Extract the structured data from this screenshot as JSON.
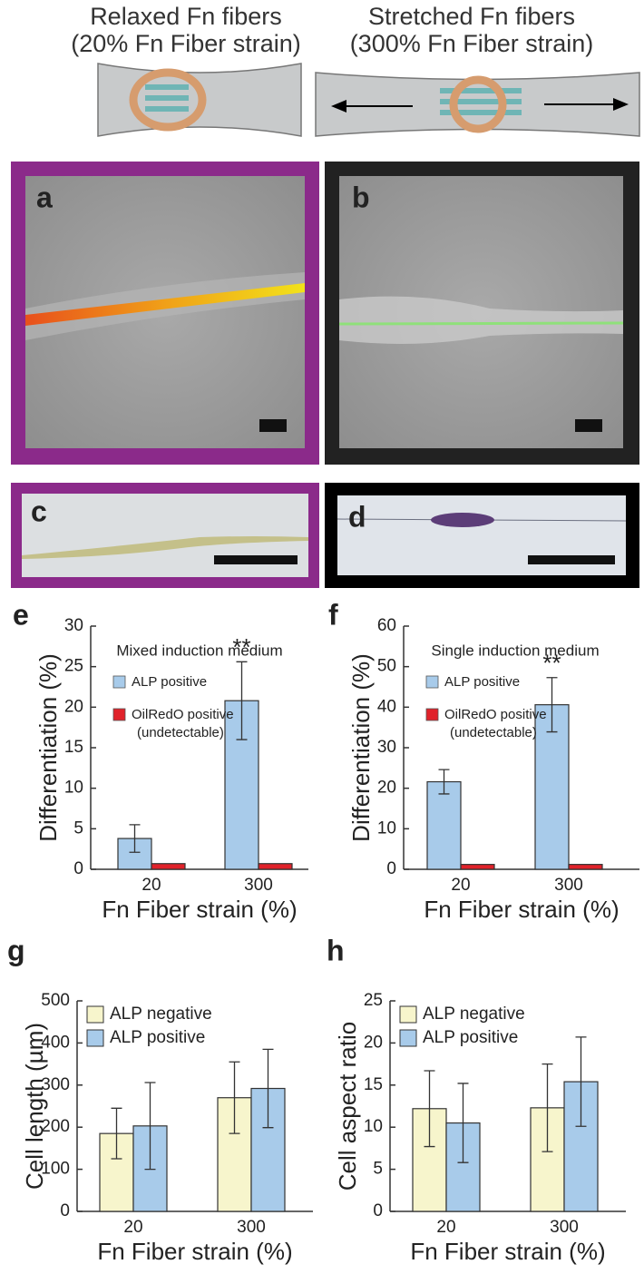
{
  "header": {
    "left_title": "Relaxed Fn fibers",
    "left_subtitle": "(20% Fn Fiber strain)",
    "right_title": "Stretched Fn fibers",
    "right_subtitle": "(300% Fn Fiber strain)"
  },
  "panels": [
    "a",
    "b",
    "c",
    "d",
    "e",
    "f",
    "g",
    "h"
  ],
  "chart_data": [
    {
      "type": "bar",
      "title": "Mixed induction medium",
      "y_label": "Differentiation (%)",
      "x_label": "Fn Fiber strain (%)",
      "categories": [
        "20",
        "300"
      ],
      "ylim": [
        0,
        30
      ],
      "yticks": [
        0,
        5,
        10,
        15,
        20,
        25,
        30
      ],
      "series": [
        {
          "name": "ALP positive",
          "color": "#a8cbea",
          "values": [
            3.8,
            20.8
          ],
          "errors": [
            1.7,
            4.8
          ]
        },
        {
          "name": "OilRedO positive",
          "note": "(undetectable)",
          "color": "#e0222a",
          "values": [
            0.7,
            0.7
          ]
        }
      ],
      "annotations": [
        {
          "text": "**"
        }
      ]
    },
    {
      "type": "bar",
      "title": "Single induction medium",
      "y_label": "Differentiation (%)",
      "x_label": "Fn Fiber strain (%)",
      "categories": [
        "20",
        "300"
      ],
      "ylim": [
        0,
        60
      ],
      "yticks": [
        0,
        10,
        20,
        30,
        40,
        50,
        60
      ],
      "series": [
        {
          "name": "ALP positive",
          "color": "#a8cbea",
          "values": [
            21.6,
            40.6
          ],
          "errors": [
            3.0,
            6.7
          ]
        },
        {
          "name": "OilRedO positive",
          "note": "(undetectable)",
          "color": "#e0222a",
          "values": [
            1.2,
            1.2
          ]
        }
      ],
      "annotations": [
        {
          "text": "**"
        }
      ]
    },
    {
      "type": "bar",
      "y_label": "Cell length (µm)",
      "x_label": "Fn Fiber strain (%)",
      "categories": [
        "20",
        "300"
      ],
      "ylim": [
        0,
        500
      ],
      "yticks": [
        0,
        100,
        200,
        300,
        400,
        500
      ],
      "series": [
        {
          "name": "ALP negative",
          "color": "#f7f5cc",
          "values": [
            185,
            270
          ],
          "errors": [
            60,
            85
          ]
        },
        {
          "name": "ALP positive",
          "color": "#a8cbea",
          "values": [
            203,
            292
          ],
          "errors": [
            103,
            93
          ]
        }
      ]
    },
    {
      "type": "bar",
      "y_label": "Cell aspect ratio",
      "x_label": "Fn Fiber strain (%)",
      "categories": [
        "20",
        "300"
      ],
      "ylim": [
        0,
        25
      ],
      "yticks": [
        0,
        5,
        10,
        15,
        20,
        25
      ],
      "series": [
        {
          "name": "ALP negative",
          "color": "#f7f5cc",
          "values": [
            12.2,
            12.3
          ],
          "errors": [
            4.5,
            5.2
          ]
        },
        {
          "name": "ALP positive",
          "color": "#a8cbea",
          "values": [
            10.5,
            15.4
          ],
          "errors": [
            4.7,
            5.3
          ]
        }
      ]
    }
  ]
}
